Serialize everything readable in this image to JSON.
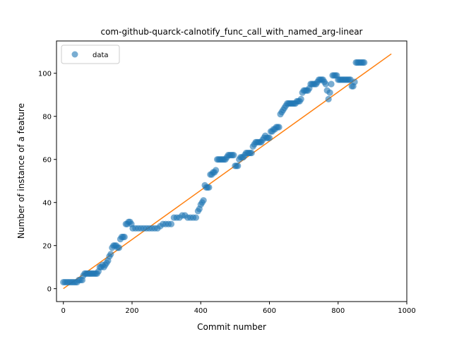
{
  "chart_data": {
    "type": "scatter",
    "title": "com-github-quarck-calnotify_func_call_with_named_arg-linear",
    "xlabel": "Commit number",
    "ylabel": "Number of instance of a feature",
    "xlim": [
      -20,
      1000
    ],
    "ylim": [
      -6,
      115
    ],
    "xticks": [
      0,
      200,
      400,
      600,
      800,
      1000
    ],
    "yticks": [
      0,
      20,
      40,
      60,
      80,
      100
    ],
    "grid": false,
    "legend": {
      "placement": "top-left",
      "entries": [
        "data"
      ]
    },
    "colors": {
      "data": "#1f77b4",
      "fit": "#ff7f0e"
    },
    "series": [
      {
        "name": "data",
        "kind": "scatter",
        "points": [
          [
            0,
            3
          ],
          [
            5,
            3
          ],
          [
            10,
            3
          ],
          [
            15,
            3
          ],
          [
            20,
            3
          ],
          [
            25,
            3
          ],
          [
            30,
            3
          ],
          [
            35,
            3
          ],
          [
            40,
            3
          ],
          [
            45,
            4
          ],
          [
            50,
            4
          ],
          [
            55,
            4
          ],
          [
            58,
            6
          ],
          [
            62,
            7
          ],
          [
            66,
            7
          ],
          [
            70,
            7
          ],
          [
            74,
            7
          ],
          [
            78,
            7
          ],
          [
            82,
            7
          ],
          [
            86,
            7
          ],
          [
            90,
            7
          ],
          [
            94,
            7
          ],
          [
            98,
            7
          ],
          [
            102,
            8
          ],
          [
            106,
            10
          ],
          [
            110,
            10
          ],
          [
            114,
            11
          ],
          [
            118,
            10
          ],
          [
            122,
            11
          ],
          [
            126,
            12
          ],
          [
            130,
            13
          ],
          [
            134,
            15
          ],
          [
            138,
            16
          ],
          [
            142,
            19
          ],
          [
            146,
            20
          ],
          [
            150,
            20
          ],
          [
            154,
            20
          ],
          [
            158,
            19
          ],
          [
            162,
            19
          ],
          [
            166,
            23
          ],
          [
            170,
            24
          ],
          [
            174,
            24
          ],
          [
            178,
            24
          ],
          [
            182,
            30
          ],
          [
            186,
            30
          ],
          [
            190,
            31
          ],
          [
            194,
            31
          ],
          [
            198,
            30
          ],
          [
            202,
            28
          ],
          [
            210,
            28
          ],
          [
            218,
            28
          ],
          [
            226,
            28
          ],
          [
            234,
            28
          ],
          [
            242,
            28
          ],
          [
            250,
            28
          ],
          [
            258,
            28
          ],
          [
            266,
            28
          ],
          [
            274,
            28
          ],
          [
            282,
            29
          ],
          [
            290,
            30
          ],
          [
            298,
            30
          ],
          [
            306,
            30
          ],
          [
            314,
            30
          ],
          [
            322,
            33
          ],
          [
            330,
            33
          ],
          [
            338,
            33
          ],
          [
            346,
            34
          ],
          [
            354,
            34
          ],
          [
            362,
            33
          ],
          [
            370,
            33
          ],
          [
            378,
            33
          ],
          [
            386,
            33
          ],
          [
            392,
            36
          ],
          [
            396,
            37
          ],
          [
            400,
            39
          ],
          [
            404,
            40
          ],
          [
            408,
            41
          ],
          [
            412,
            48
          ],
          [
            416,
            47
          ],
          [
            420,
            47
          ],
          [
            424,
            47
          ],
          [
            428,
            53
          ],
          [
            432,
            53
          ],
          [
            436,
            54
          ],
          [
            440,
            54
          ],
          [
            444,
            55
          ],
          [
            448,
            60
          ],
          [
            452,
            60
          ],
          [
            456,
            60
          ],
          [
            460,
            60
          ],
          [
            464,
            60
          ],
          [
            468,
            60
          ],
          [
            472,
            60
          ],
          [
            476,
            61
          ],
          [
            480,
            62
          ],
          [
            484,
            62
          ],
          [
            488,
            62
          ],
          [
            492,
            62
          ],
          [
            496,
            62
          ],
          [
            500,
            57
          ],
          [
            504,
            57
          ],
          [
            508,
            57
          ],
          [
            512,
            60
          ],
          [
            516,
            61
          ],
          [
            520,
            61
          ],
          [
            524,
            61
          ],
          [
            528,
            62
          ],
          [
            532,
            63
          ],
          [
            536,
            63
          ],
          [
            540,
            63
          ],
          [
            544,
            63
          ],
          [
            548,
            63
          ],
          [
            552,
            66
          ],
          [
            556,
            67
          ],
          [
            560,
            68
          ],
          [
            564,
            68
          ],
          [
            568,
            68
          ],
          [
            572,
            68
          ],
          [
            576,
            68
          ],
          [
            580,
            69
          ],
          [
            584,
            70
          ],
          [
            588,
            71
          ],
          [
            592,
            70
          ],
          [
            596,
            70
          ],
          [
            600,
            70
          ],
          [
            604,
            73
          ],
          [
            608,
            73
          ],
          [
            612,
            74
          ],
          [
            616,
            74
          ],
          [
            620,
            75
          ],
          [
            624,
            75
          ],
          [
            628,
            75
          ],
          [
            632,
            81
          ],
          [
            636,
            82
          ],
          [
            640,
            83
          ],
          [
            644,
            84
          ],
          [
            648,
            85
          ],
          [
            652,
            86
          ],
          [
            656,
            86
          ],
          [
            660,
            86
          ],
          [
            664,
            86
          ],
          [
            668,
            86
          ],
          [
            672,
            86
          ],
          [
            676,
            86
          ],
          [
            680,
            87
          ],
          [
            684,
            87
          ],
          [
            688,
            87
          ],
          [
            692,
            88
          ],
          [
            696,
            91
          ],
          [
            700,
            92
          ],
          [
            704,
            92
          ],
          [
            708,
            92
          ],
          [
            712,
            92
          ],
          [
            716,
            93
          ],
          [
            720,
            95
          ],
          [
            724,
            95
          ],
          [
            728,
            95
          ],
          [
            732,
            95
          ],
          [
            736,
            95
          ],
          [
            740,
            96
          ],
          [
            744,
            97
          ],
          [
            748,
            97
          ],
          [
            752,
            97
          ],
          [
            756,
            97
          ],
          [
            760,
            96
          ],
          [
            764,
            95
          ],
          [
            768,
            92
          ],
          [
            772,
            88
          ],
          [
            776,
            91
          ],
          [
            780,
            95
          ],
          [
            784,
            99
          ],
          [
            788,
            99
          ],
          [
            792,
            99
          ],
          [
            796,
            99
          ],
          [
            800,
            97
          ],
          [
            804,
            97
          ],
          [
            808,
            97
          ],
          [
            812,
            97
          ],
          [
            816,
            97
          ],
          [
            820,
            97
          ],
          [
            824,
            97
          ],
          [
            828,
            97
          ],
          [
            832,
            97
          ],
          [
            836,
            97
          ],
          [
            840,
            94
          ],
          [
            844,
            94
          ],
          [
            848,
            96
          ],
          [
            852,
            105
          ],
          [
            856,
            105
          ],
          [
            860,
            105
          ],
          [
            864,
            105
          ],
          [
            868,
            105
          ],
          [
            872,
            105
          ],
          [
            876,
            105
          ]
        ]
      },
      {
        "name": "",
        "kind": "line",
        "x": [
          0,
          955
        ],
        "y": [
          0,
          109
        ]
      }
    ]
  }
}
